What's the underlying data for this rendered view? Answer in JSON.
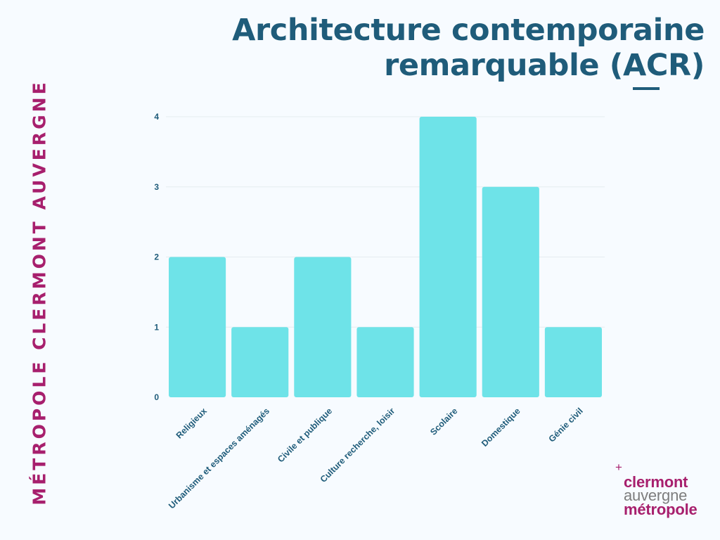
{
  "header": {
    "title_line1": "Architecture contemporaine",
    "title_line2": "remarquable (ACR)"
  },
  "side_label": "MÉTROPOLE CLERMONT AUVERGNE",
  "logo": {
    "plus": "+",
    "line1": "clermont",
    "line2": "auvergne",
    "line3": "métropole"
  },
  "colors": {
    "background": "#f7fbff",
    "title": "#1f5c7a",
    "bar": "#6ee3e8",
    "grid": "#e6ecef",
    "axis_text": "#1f5c7a",
    "accent": "#a71f6d",
    "logo_gray": "#7d7d7d"
  },
  "chart_data": {
    "type": "bar",
    "categories": [
      "Religieux",
      "Urbanisme et espaces aménagés",
      "Civile et publique",
      "Culture recherche, loisir",
      "Scolaire",
      "Domestique",
      "Génie civil"
    ],
    "values": [
      2,
      1,
      2,
      1,
      4,
      3,
      1
    ],
    "ylim": [
      0,
      4
    ],
    "yticks": [
      0,
      1,
      2,
      3,
      4
    ],
    "grid": true,
    "title": "",
    "xlabel": "",
    "ylabel": ""
  }
}
